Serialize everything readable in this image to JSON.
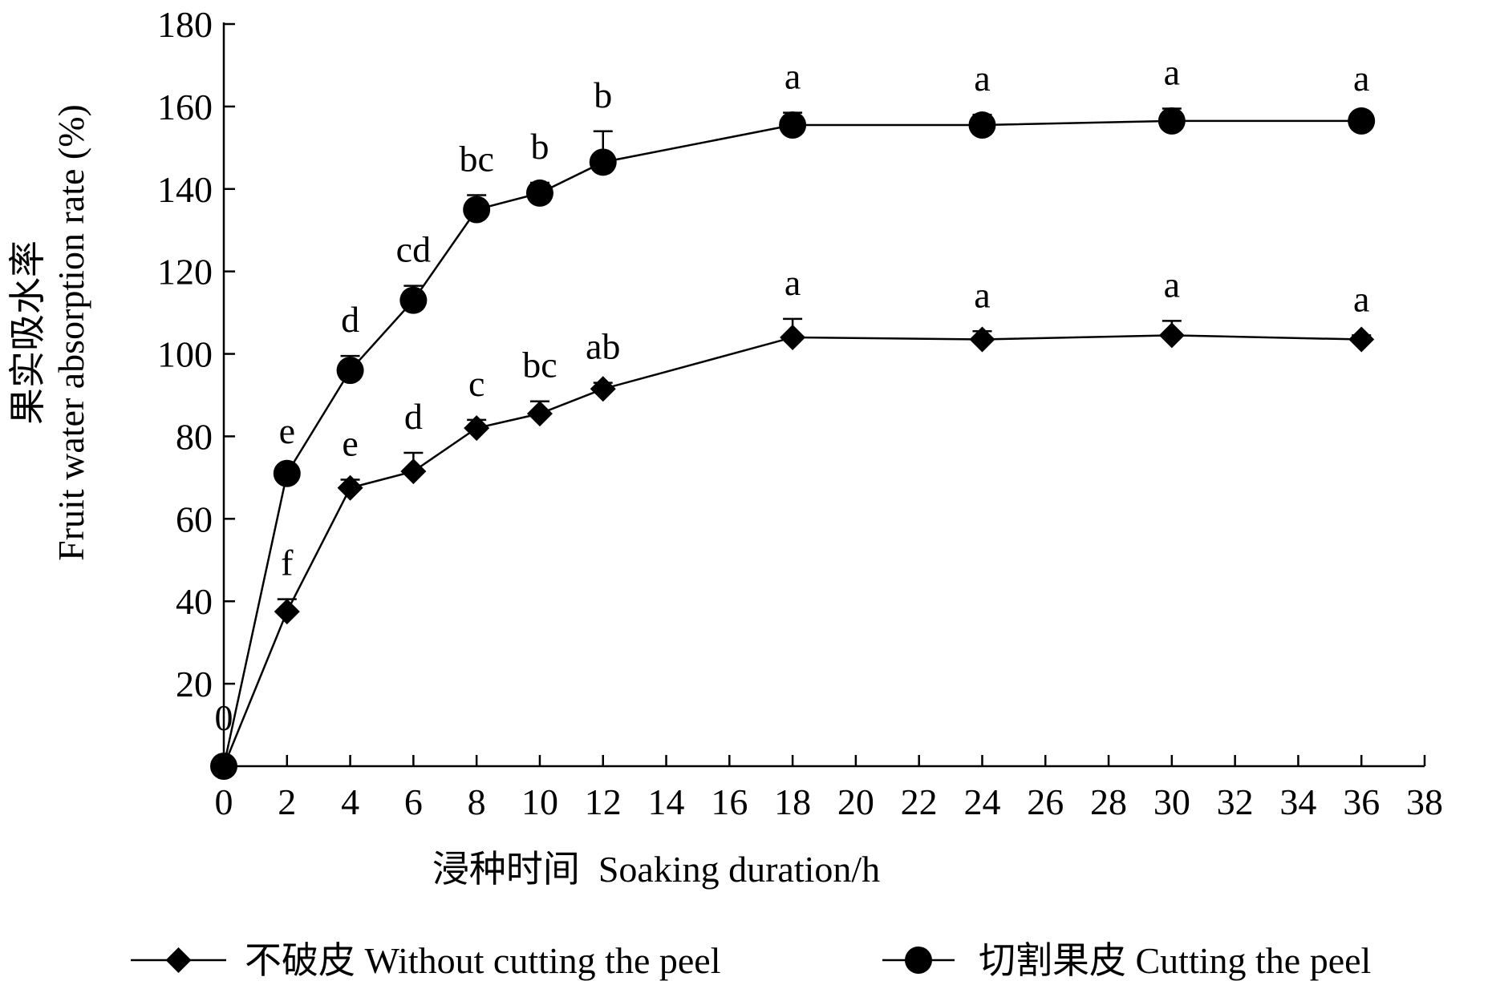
{
  "chart_data": {
    "type": "line",
    "title": "",
    "xlabel": "浸种时间  Soaking duration/h",
    "ylabel_cn": "果实吸水率",
    "ylabel_en": "Fruit water absorption rate (%)",
    "xlim": [
      0,
      38
    ],
    "ylim": [
      0,
      180
    ],
    "xticks": [
      0,
      2,
      4,
      6,
      8,
      10,
      12,
      14,
      16,
      18,
      20,
      22,
      24,
      26,
      28,
      30,
      32,
      34,
      36,
      38
    ],
    "yticks": [
      20,
      40,
      60,
      80,
      100,
      120,
      140,
      160,
      180
    ],
    "x": [
      0,
      2,
      4,
      6,
      8,
      10,
      12,
      18,
      24,
      30,
      36
    ],
    "zero_label": "0",
    "legend_position": "bottom",
    "grid": false,
    "series": [
      {
        "name": "不破皮  Without cutting the peel",
        "marker": "diamond",
        "values": [
          0,
          37.5,
          67.5,
          71.5,
          82,
          85.5,
          91.5,
          104,
          103.5,
          104.5,
          103.5
        ],
        "errors": [
          0,
          3,
          2,
          4.5,
          2,
          3,
          1.5,
          4.5,
          2,
          3.5,
          1
        ],
        "labels": [
          "",
          "f",
          "e",
          "d",
          "c",
          "bc",
          "ab",
          "a",
          "a",
          "a",
          "a"
        ]
      },
      {
        "name": "切割果皮  Cutting the peel",
        "marker": "circle",
        "values": [
          0,
          71,
          96,
          113,
          135,
          139,
          146.5,
          155.5,
          155.5,
          156.5,
          156.5
        ],
        "errors": [
          0,
          1.5,
          3.5,
          3.5,
          3.5,
          2.5,
          7.5,
          3,
          2.5,
          3,
          1.5
        ],
        "labels": [
          "",
          "e",
          "d",
          "cd",
          "bc",
          "b",
          "b",
          "a",
          "a",
          "a",
          "a"
        ]
      }
    ]
  }
}
